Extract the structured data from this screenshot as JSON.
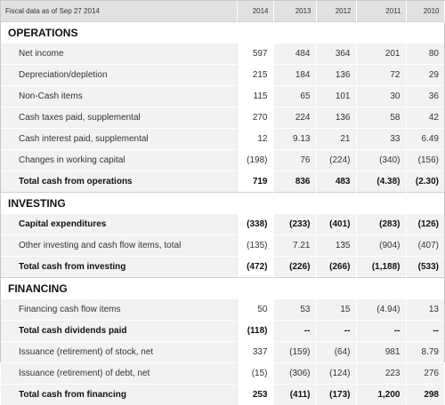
{
  "header": {
    "label": "Fiscal data as of Sep 27 2014",
    "years": [
      "2014",
      "2013",
      "2012",
      "2011",
      "2010"
    ]
  },
  "sections": [
    {
      "title": "OPERATIONS",
      "rows": [
        {
          "label": "Net income",
          "values": [
            "597",
            "484",
            "364",
            "201",
            "80"
          ],
          "bold": false
        },
        {
          "label": "Depreciation/depletion",
          "values": [
            "215",
            "184",
            "136",
            "72",
            "29"
          ],
          "bold": false
        },
        {
          "label": "Non-Cash items",
          "values": [
            "115",
            "65",
            "101",
            "30",
            "36"
          ],
          "bold": false
        },
        {
          "label": "Cash taxes paid, supplemental",
          "values": [
            "270",
            "224",
            "136",
            "58",
            "42"
          ],
          "bold": false
        },
        {
          "label": "Cash interest paid, supplemental",
          "values": [
            "12",
            "9.13",
            "21",
            "33",
            "6.49"
          ],
          "bold": false
        },
        {
          "label": "Changes in working capital",
          "values": [
            "(198)",
            "76",
            "(224)",
            "(340)",
            "(156)"
          ],
          "bold": false
        },
        {
          "label": "Total cash from operations",
          "values": [
            "719",
            "836",
            "483",
            "(4.38)",
            "(2.30)"
          ],
          "bold": true
        }
      ]
    },
    {
      "title": "INVESTING",
      "rows": [
        {
          "label": "Capital expenditures",
          "values": [
            "(338)",
            "(233)",
            "(401)",
            "(283)",
            "(126)"
          ],
          "bold": true
        },
        {
          "label": "Other investing and cash flow items, total",
          "values": [
            "(135)",
            "7.21",
            "135",
            "(904)",
            "(407)"
          ],
          "bold": false
        },
        {
          "label": "Total cash from investing",
          "values": [
            "(472)",
            "(226)",
            "(266)",
            "(1,188)",
            "(533)"
          ],
          "bold": true
        }
      ]
    },
    {
      "title": "FINANCING",
      "rows": [
        {
          "label": "Financing cash flow items",
          "values": [
            "50",
            "53",
            "15",
            "(4.94)",
            "13"
          ],
          "bold": false
        },
        {
          "label": "Total cash dividends paid",
          "values": [
            "(118)",
            "--",
            "--",
            "--",
            "--"
          ],
          "bold": true
        },
        {
          "label": "Issuance (retirement) of stock, net",
          "values": [
            "337",
            "(159)",
            "(64)",
            "981",
            "8.79"
          ],
          "bold": false
        },
        {
          "label": "Issuance (retirement) of debt, net",
          "values": [
            "(15)",
            "(306)",
            "(124)",
            "223",
            "276"
          ],
          "bold": false
        },
        {
          "label": "Total cash from financing",
          "values": [
            "253",
            "(411)",
            "(173)",
            "1,200",
            "298"
          ],
          "bold": true
        }
      ]
    }
  ]
}
